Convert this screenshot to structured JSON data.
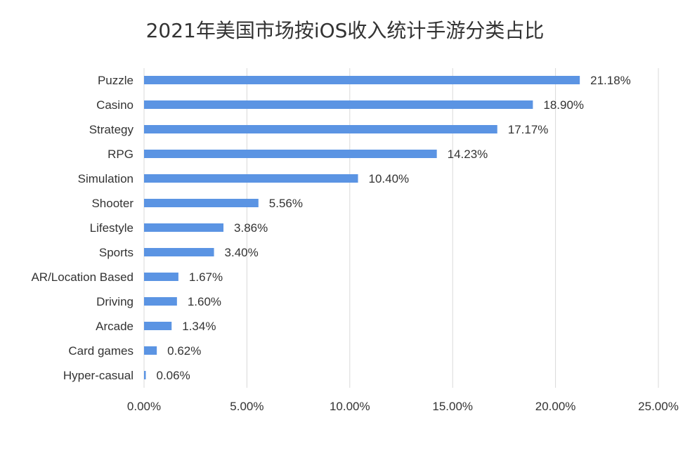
{
  "chart_data": {
    "type": "bar",
    "orientation": "horizontal",
    "title": "2021年美国市场按iOS收入统计手游分类占比",
    "categories": [
      "Puzzle",
      "Casino",
      "Strategy",
      "RPG",
      "Simulation",
      "Shooter",
      "Lifestyle",
      "Sports",
      "AR/Location Based",
      "Driving",
      "Arcade",
      "Card games",
      "Hyper-casual"
    ],
    "values": [
      21.18,
      18.9,
      17.17,
      14.23,
      10.4,
      5.56,
      3.86,
      3.4,
      1.67,
      1.6,
      1.34,
      0.62,
      0.06
    ],
    "value_labels": [
      "21.18%",
      "18.90%",
      "17.17%",
      "14.23%",
      "10.40%",
      "5.56%",
      "3.86%",
      "3.40%",
      "1.67%",
      "1.60%",
      "1.34%",
      "0.62%",
      "0.06%"
    ],
    "x_ticks": [
      0,
      5,
      10,
      15,
      20,
      25
    ],
    "x_tick_labels": [
      "0.00%",
      "5.00%",
      "10.00%",
      "15.00%",
      "20.00%",
      "25.00%"
    ],
    "xlim": [
      0,
      25
    ],
    "xlabel": "",
    "ylabel": "",
    "grid": "vertical",
    "legend": "none",
    "bar_color": "#5b94e3",
    "grid_color": "#d9d9d9"
  }
}
